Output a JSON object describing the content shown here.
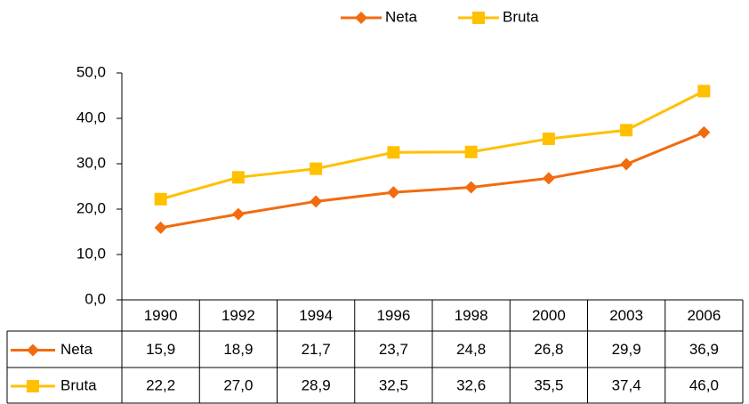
{
  "chart_data": {
    "type": "line",
    "categories": [
      "1990",
      "1992",
      "1994",
      "1996",
      "1998",
      "2000",
      "2003",
      "2006"
    ],
    "series": [
      {
        "name": "Neta",
        "color": "#f26b0f",
        "marker": "diamond",
        "values": [
          15.9,
          18.9,
          21.7,
          23.7,
          24.8,
          26.8,
          29.9,
          36.9
        ],
        "value_labels": [
          "15,9",
          "18,9",
          "21,7",
          "23,7",
          "24,8",
          "26,8",
          "29,9",
          "36,9"
        ]
      },
      {
        "name": "Bruta",
        "color": "#ffc000",
        "marker": "square",
        "values": [
          22.2,
          27.0,
          28.9,
          32.5,
          32.6,
          35.5,
          37.4,
          46.0
        ],
        "value_labels": [
          "22,2",
          "27,0",
          "28,9",
          "32,5",
          "32,6",
          "35,5",
          "37,4",
          "46,0"
        ]
      }
    ],
    "ylim": [
      0,
      50
    ],
    "yticks": [
      {
        "value": 0,
        "label": "0,0"
      },
      {
        "value": 10,
        "label": "10,0"
      },
      {
        "value": 20,
        "label": "20,0"
      },
      {
        "value": 30,
        "label": "30,0"
      },
      {
        "value": 40,
        "label": "40,0"
      },
      {
        "value": 50,
        "label": "50,0"
      }
    ],
    "legend": "top",
    "grid": false,
    "data_table": true
  }
}
